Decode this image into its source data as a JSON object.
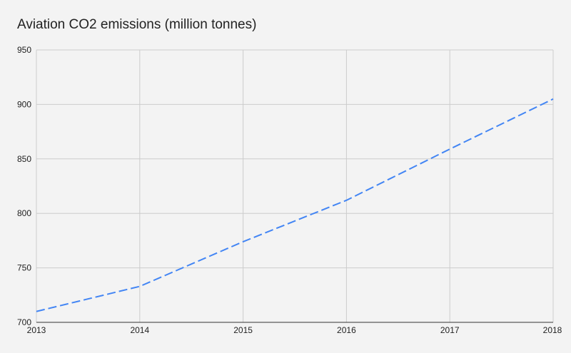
{
  "chart_data": {
    "type": "line",
    "title": "Aviation CO2 emissions (million tonnes)",
    "xlabel": "",
    "ylabel": "",
    "x": [
      2013,
      2014,
      2015,
      2016,
      2017,
      2018
    ],
    "xlim": [
      2013,
      2018
    ],
    "ylim": [
      700,
      950
    ],
    "yticks": [
      700,
      750,
      800,
      850,
      900,
      950
    ],
    "grid": true,
    "legend": "none",
    "series": [
      {
        "values": [
          710,
          733,
          774,
          812,
          859,
          905
        ],
        "color": "#4285f4",
        "line_style": "dashed"
      }
    ]
  },
  "colors": {
    "background": "#f3f3f3",
    "gridline": "#cccccc",
    "axis_line": "#333333",
    "title_text": "#222222",
    "tick_text": "#222222"
  }
}
